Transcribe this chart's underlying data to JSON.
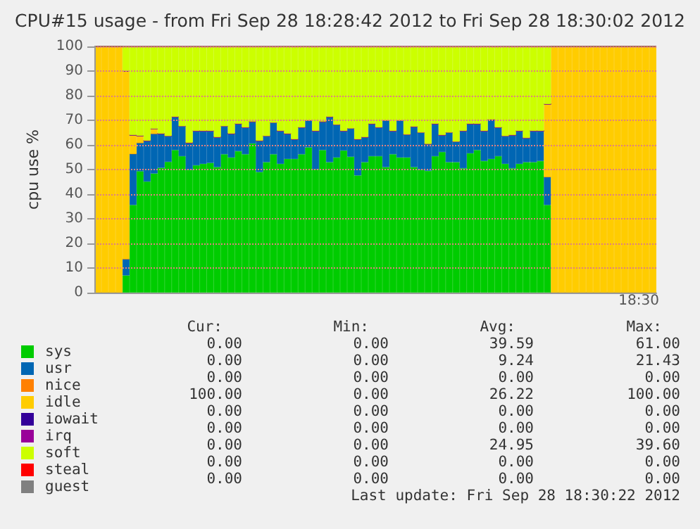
{
  "chart_data": {
    "type": "bar",
    "stacked": true,
    "title": "CPU#15 usage - from Fri Sep 28 18:28:42 2012 to Fri Sep 28 18:30:02 2012",
    "ylabel": "cpu use %",
    "categories": [
      null,
      null,
      null,
      null,
      null,
      null,
      null,
      null,
      null,
      null,
      null,
      null,
      null,
      null,
      null,
      null,
      null,
      null,
      null,
      null,
      null,
      null,
      null,
      null,
      null,
      null,
      null,
      null,
      null,
      null,
      null,
      null,
      null,
      null,
      null,
      null,
      null,
      null,
      null,
      null,
      null,
      null,
      null,
      null,
      null,
      null,
      null,
      null,
      null,
      null,
      null,
      null,
      null,
      null,
      null,
      null,
      null,
      null,
      null,
      null,
      null,
      null,
      null,
      null,
      null,
      null,
      null,
      null,
      null,
      null,
      null,
      null,
      null,
      null,
      null,
      null,
      null,
      null,
      null,
      null
    ],
    "series": [
      {
        "name": "sys",
        "color": "#00cc00",
        "values": [
          0,
          0,
          0,
          0,
          7,
          35.6,
          49.3,
          45.1,
          48.4,
          50.7,
          53.1,
          57.9,
          55.4,
          49.9,
          51.7,
          52.3,
          52.7,
          51,
          56.2,
          54.9,
          57.5,
          56.2,
          60.6,
          49,
          53,
          56.2,
          52.3,
          54.3,
          54.3,
          56.2,
          59,
          50.1,
          57.9,
          53,
          54.9,
          57.7,
          55.2,
          47.6,
          53,
          55.4,
          55.4,
          51,
          56.2,
          54.9,
          54.9,
          51,
          49.9,
          49.5,
          55.4,
          57.1,
          53,
          53,
          50.5,
          56.6,
          57.9,
          53.5,
          54.3,
          55.4,
          52.3,
          50.5,
          52.3,
          53,
          53,
          53.5,
          35.6,
          0,
          0,
          0,
          0,
          0,
          0,
          0,
          0,
          0,
          0,
          0,
          0,
          0,
          0,
          0
        ]
      },
      {
        "name": "usr",
        "color": "#0066b3",
        "values": [
          0,
          0,
          0,
          0,
          6.7,
          20.8,
          11.6,
          16.6,
          16.2,
          13.9,
          10.5,
          13.5,
          12.2,
          11,
          14,
          13.4,
          13,
          12.2,
          11.4,
          9.7,
          11.1,
          10.9,
          8.9,
          12.7,
          10.6,
          12.8,
          13.4,
          10.3,
          8,
          10.9,
          10.9,
          15.6,
          11.6,
          18.4,
          13.3,
          8,
          11.5,
          14.7,
          10.2,
          13.2,
          11.7,
          18.9,
          9.5,
          15,
          9.3,
          16.4,
          15.1,
          10.9,
          13.2,
          6.9,
          12,
          8.3,
          15.2,
          12,
          10.7,
          12.2,
          16,
          11.7,
          11.3,
          13.5,
          13.4,
          9.8,
          12.7,
          12.2,
          11.4,
          0,
          0,
          0,
          0,
          0,
          0,
          0,
          0,
          0,
          0,
          0,
          0,
          0,
          0,
          0
        ]
      },
      {
        "name": "nice",
        "color": "#ff8000",
        "values": [
          0,
          0,
          0,
          0,
          0,
          0,
          0,
          0,
          0,
          0,
          0,
          0,
          0,
          0,
          0,
          0,
          0,
          0,
          0,
          0,
          0,
          0,
          0,
          0,
          0,
          0,
          0,
          0,
          0,
          0,
          0,
          0,
          0,
          0,
          0,
          0,
          0,
          0,
          0,
          0,
          0,
          0,
          0,
          0,
          0,
          0,
          0,
          0,
          0,
          0,
          0,
          0,
          0,
          0,
          0,
          0,
          0,
          0,
          0,
          0,
          0,
          0,
          0,
          0,
          0,
          0,
          0,
          0,
          0,
          0,
          0,
          0,
          0,
          0,
          0,
          0,
          0,
          0,
          0,
          0
        ]
      },
      {
        "name": "idle",
        "color": "#ffcc00",
        "values": [
          100,
          100,
          100,
          100,
          76.3,
          7.6,
          2.8,
          0,
          1.9,
          0,
          0,
          0,
          0,
          0,
          0,
          0,
          0,
          0,
          0,
          0,
          0,
          0,
          0,
          0,
          0,
          0,
          0,
          0,
          0,
          0,
          0,
          0,
          0,
          0,
          0,
          0,
          0,
          0,
          0,
          0,
          0,
          0,
          0,
          0,
          0,
          0,
          0,
          0,
          0,
          0,
          0,
          0,
          0,
          0,
          0,
          0,
          0,
          0,
          0,
          0,
          0,
          0,
          0,
          0,
          29.6,
          100,
          100,
          100,
          100,
          100,
          100,
          100,
          100,
          100,
          100,
          100,
          100,
          100,
          100,
          100
        ]
      },
      {
        "name": "iowait",
        "color": "#330099",
        "values": [
          0,
          0,
          0,
          0,
          0,
          0,
          0,
          0,
          0,
          0,
          0,
          0,
          0,
          0,
          0,
          0,
          0,
          0,
          0,
          0,
          0,
          0,
          0,
          0,
          0,
          0,
          0,
          0,
          0,
          0,
          0,
          0,
          0,
          0,
          0,
          0,
          0,
          0,
          0,
          0,
          0,
          0,
          0,
          0,
          0,
          0,
          0,
          0,
          0,
          0,
          0,
          0,
          0,
          0,
          0,
          0,
          0,
          0,
          0,
          0,
          0,
          0,
          0,
          0,
          0,
          0,
          0,
          0,
          0,
          0,
          0,
          0,
          0,
          0,
          0,
          0,
          0,
          0,
          0,
          0
        ]
      },
      {
        "name": "irq",
        "color": "#990099",
        "values": [
          0,
          0,
          0,
          0,
          0,
          0,
          0,
          0,
          0,
          0,
          0,
          0,
          0,
          0,
          0,
          0,
          0,
          0,
          0,
          0,
          0,
          0,
          0,
          0,
          0,
          0,
          0,
          0,
          0,
          0,
          0,
          0,
          0,
          0,
          0,
          0,
          0,
          0,
          0,
          0,
          0,
          0,
          0,
          0,
          0,
          0,
          0,
          0,
          0,
          0,
          0,
          0,
          0,
          0,
          0,
          0,
          0,
          0,
          0,
          0,
          0,
          0,
          0,
          0,
          0,
          0,
          0,
          0,
          0,
          0,
          0,
          0,
          0,
          0,
          0,
          0,
          0,
          0,
          0,
          0
        ]
      },
      {
        "name": "soft",
        "color": "#ccff00",
        "values": [
          0,
          0,
          0,
          0,
          10,
          36,
          36.3,
          38.3,
          33.5,
          35.4,
          36.4,
          28.6,
          32.4,
          39.1,
          34.3,
          34.3,
          34.3,
          36.8,
          32.4,
          35.4,
          31.4,
          32.9,
          30.5,
          38.3,
          36.4,
          31,
          34.3,
          35.4,
          37.7,
          32.9,
          30.1,
          34.3,
          30.5,
          28.6,
          31.8,
          34.3,
          33.3,
          37.7,
          36.8,
          31.4,
          32.9,
          30.1,
          34.3,
          30.1,
          35.8,
          32.6,
          35,
          39.6,
          31.4,
          36,
          35,
          38.7,
          34.3,
          31.4,
          31.4,
          34.3,
          29.7,
          32.9,
          36.4,
          36,
          34.3,
          37.2,
          34.3,
          34.3,
          23.4,
          0,
          0,
          0,
          0,
          0,
          0,
          0,
          0,
          0,
          0,
          0,
          0,
          0,
          0,
          0
        ]
      },
      {
        "name": "steal",
        "color": "#ff0000",
        "values": [
          0,
          0,
          0,
          0,
          0,
          0,
          0,
          0,
          0,
          0,
          0,
          0,
          0,
          0,
          0,
          0,
          0,
          0,
          0,
          0,
          0,
          0,
          0,
          0,
          0,
          0,
          0,
          0,
          0,
          0,
          0,
          0,
          0,
          0,
          0,
          0,
          0,
          0,
          0,
          0,
          0,
          0,
          0,
          0,
          0,
          0,
          0,
          0,
          0,
          0,
          0,
          0,
          0,
          0,
          0,
          0,
          0,
          0,
          0,
          0,
          0,
          0,
          0,
          0,
          0,
          0,
          0,
          0,
          0,
          0,
          0,
          0,
          0,
          0,
          0,
          0,
          0,
          0,
          0,
          0
        ]
      },
      {
        "name": "guest",
        "color": "#808080",
        "values": [
          0,
          0,
          0,
          0,
          0,
          0,
          0,
          0,
          0,
          0,
          0,
          0,
          0,
          0,
          0,
          0,
          0,
          0,
          0,
          0,
          0,
          0,
          0,
          0,
          0,
          0,
          0,
          0,
          0,
          0,
          0,
          0,
          0,
          0,
          0,
          0,
          0,
          0,
          0,
          0,
          0,
          0,
          0,
          0,
          0,
          0,
          0,
          0,
          0,
          0,
          0,
          0,
          0,
          0,
          0,
          0,
          0,
          0,
          0,
          0,
          0,
          0,
          0,
          0,
          0,
          0,
          0,
          0,
          0,
          0,
          0,
          0,
          0,
          0,
          0,
          0,
          0,
          0,
          0,
          0
        ]
      }
    ],
    "ylim": [
      0,
      100
    ],
    "yticks": [
      0,
      10,
      20,
      30,
      40,
      50,
      60,
      70,
      80,
      90,
      100
    ],
    "grid": "y",
    "legend": "bottom left",
    "annotations": [
      "18:30",
      "Cur:",
      "Min:",
      "Avg:",
      "Max:",
      "0.00",
      "0.00",
      "39.59",
      "61.00",
      "0.00",
      "0.00",
      "9.24",
      "21.43",
      "0.00",
      "0.00",
      "0.00",
      "0.00",
      "100.00",
      "0.00",
      "26.22",
      "100.00",
      "0.00",
      "0.00",
      "0.00",
      "0.00",
      "0.00",
      "0.00",
      "0.00",
      "0.00",
      "0.00",
      "0.00",
      "24.95",
      "39.60",
      "0.00",
      "0.00",
      "0.00",
      "0.00",
      "0.00",
      "0.00",
      "0.00",
      "0.00",
      "Last update: Fri Sep 28 18:30:22 2012"
    ]
  }
}
